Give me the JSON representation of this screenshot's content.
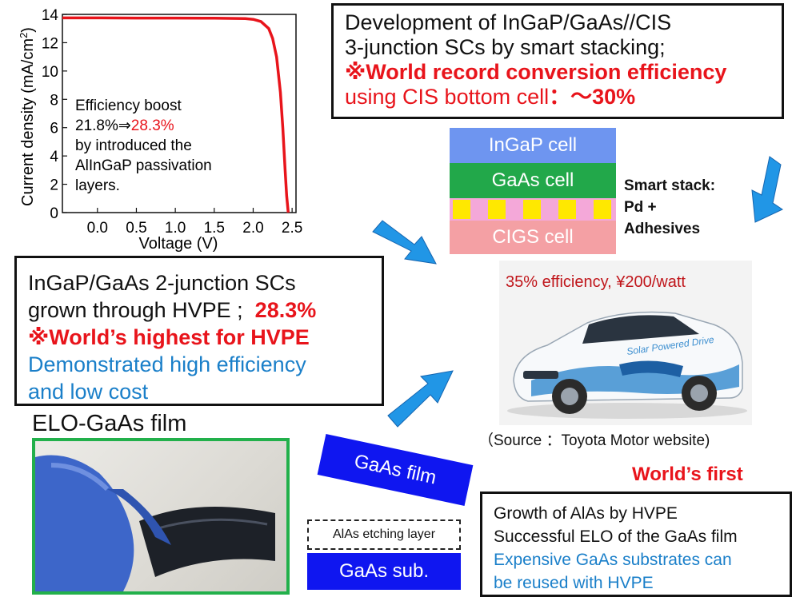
{
  "chart_data": {
    "type": "line",
    "xlabel": "Voltage (V)",
    "ylabel": "Current density (mA/cm²)",
    "ylabel_main": "Current density (mA/cm",
    "ylabel_sup": "2",
    "ylabel_tail": ")",
    "xlim": [
      -0.45,
      2.55
    ],
    "ylim": [
      0,
      14
    ],
    "xticks": [
      "0.0",
      "0.5",
      "1.0",
      "1.5",
      "2.0",
      "2.5"
    ],
    "xtick_values": [
      0.0,
      0.5,
      1.0,
      1.5,
      2.0,
      2.5
    ],
    "yticks": [
      "0",
      "2",
      "4",
      "6",
      "8",
      "10",
      "12",
      "14"
    ],
    "ytick_values": [
      0,
      2,
      4,
      6,
      8,
      10,
      12,
      14
    ],
    "series": [
      {
        "color": "#e8141b",
        "x": [
          -0.45,
          0.0,
          0.5,
          1.0,
          1.5,
          1.9,
          2.0,
          2.1,
          2.2,
          2.25,
          2.3,
          2.35,
          2.38,
          2.41,
          2.43,
          2.45
        ],
        "y": [
          13.75,
          13.75,
          13.74,
          13.74,
          13.73,
          13.7,
          13.65,
          13.5,
          13.0,
          12.3,
          11.0,
          8.5,
          6.0,
          3.0,
          1.2,
          0.0
        ]
      }
    ],
    "annotation": {
      "line1": "Efficiency boost",
      "line2_prefix": "21.8%⇒",
      "line2_highlight": "28.3%",
      "line3": "by introduced the",
      "line4": "AlInGaP passivation",
      "line5": "layers."
    }
  },
  "top_box": {
    "line1": "Development of InGaP/GaAs//CIS",
    "line2": "3-junction SCs by smart stacking;",
    "line3": "※World record conversion efficiency",
    "line4_prefix": "using CIS bottom cell",
    "line4_suffix": "：～30%"
  },
  "stack": {
    "ingap": "InGaP cell",
    "gaas": "GaAs cell",
    "cigs": "CIGS cell",
    "smart_line1": "Smart stack:",
    "smart_line2": "Pd +",
    "smart_line3": "Adhesives"
  },
  "car": {
    "caption": "35% efficiency, ¥200/watt",
    "source": "（Source ：Toyota Motor website)"
  },
  "mid_box": {
    "line1": "InGaP/GaAs 2-junction SCs",
    "line2_prefix": "grown through HVPE ;",
    "line2_value": "28.3%",
    "line3": "※World’s highest for HVPE",
    "line4": "Demonstrated high efficiency",
    "line5": "and low cost"
  },
  "elo": {
    "title": "ELO-GaAs film",
    "gaas_film": "GaAs film",
    "alas_layer": "AlAs etching layer",
    "gaas_sub": "GaAs sub."
  },
  "bottom": {
    "worlds_first": "World’s first",
    "line1": "Growth of AlAs by HVPE",
    "line2": "Successful ELO of the GaAs film",
    "line3": "Expensive GaAs substrates can",
    "line4": "be reused with HVPE"
  },
  "colors": {
    "red": "#e8141b",
    "blue_text": "#1a7fc9",
    "arrow": "#2196e6",
    "layer_blue": "#0f16f0"
  }
}
